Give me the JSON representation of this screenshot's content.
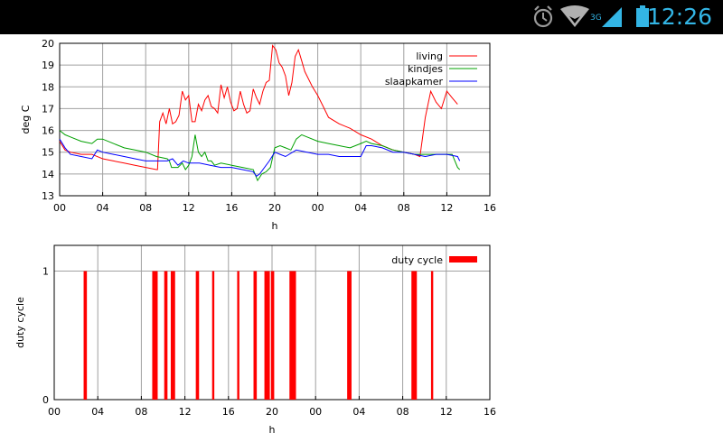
{
  "status_bar": {
    "time": "12:26",
    "network": "3G",
    "icons": [
      "alarm-icon",
      "wifi-icon",
      "signal-icon",
      "battery-icon"
    ],
    "accent": "#33b5e5"
  },
  "chart_data": [
    {
      "type": "line",
      "xlabel": "h",
      "ylabel": "deg C",
      "ylim": [
        13,
        20
      ],
      "xticks": [
        "00",
        "04",
        "08",
        "12",
        "16",
        "20",
        "00",
        "04",
        "08",
        "12",
        "16"
      ],
      "yticks": [
        "13",
        "14",
        "15",
        "16",
        "17",
        "18",
        "19",
        "20"
      ],
      "xlim_hours": [
        0,
        40
      ],
      "grid": true,
      "legend": "top-right",
      "series": [
        {
          "name": "living",
          "color": "#ff0000",
          "points": [
            [
              0,
              15.5
            ],
            [
              0.5,
              15.1
            ],
            [
              1,
              15.0
            ],
            [
              2,
              14.9
            ],
            [
              3,
              14.9
            ],
            [
              4,
              14.7
            ],
            [
              5,
              14.6
            ],
            [
              6,
              14.5
            ],
            [
              7,
              14.4
            ],
            [
              8,
              14.3
            ],
            [
              9,
              14.2
            ],
            [
              9.1,
              14.2
            ],
            [
              9.3,
              16.4
            ],
            [
              9.6,
              16.8
            ],
            [
              9.9,
              16.3
            ],
            [
              10.2,
              17.0
            ],
            [
              10.5,
              16.3
            ],
            [
              10.8,
              16.4
            ],
            [
              11.1,
              16.7
            ],
            [
              11.4,
              17.8
            ],
            [
              11.7,
              17.4
            ],
            [
              12,
              17.6
            ],
            [
              12.3,
              16.4
            ],
            [
              12.6,
              16.4
            ],
            [
              12.9,
              17.2
            ],
            [
              13.2,
              16.9
            ],
            [
              13.5,
              17.4
            ],
            [
              13.8,
              17.6
            ],
            [
              14.1,
              17.1
            ],
            [
              14.4,
              17.0
            ],
            [
              14.7,
              16.8
            ],
            [
              15.0,
              18.1
            ],
            [
              15.3,
              17.5
            ],
            [
              15.6,
              18.0
            ],
            [
              15.9,
              17.3
            ],
            [
              16.2,
              16.9
            ],
            [
              16.5,
              17.0
            ],
            [
              16.8,
              17.8
            ],
            [
              17.1,
              17.2
            ],
            [
              17.4,
              16.8
            ],
            [
              17.7,
              16.9
            ],
            [
              18.0,
              17.9
            ],
            [
              18.3,
              17.5
            ],
            [
              18.6,
              17.2
            ],
            [
              18.9,
              17.8
            ],
            [
              19.2,
              18.2
            ],
            [
              19.5,
              18.3
            ],
            [
              19.8,
              19.9
            ],
            [
              20.1,
              19.7
            ],
            [
              20.4,
              19.1
            ],
            [
              20.7,
              18.9
            ],
            [
              21.0,
              18.5
            ],
            [
              21.3,
              17.6
            ],
            [
              21.6,
              18.2
            ],
            [
              21.9,
              19.4
            ],
            [
              22.2,
              19.7
            ],
            [
              22.5,
              19.2
            ],
            [
              22.8,
              18.7
            ],
            [
              23.1,
              18.4
            ],
            [
              23.5,
              18.0
            ],
            [
              24,
              17.6
            ],
            [
              24.5,
              17.1
            ],
            [
              25,
              16.6
            ],
            [
              26,
              16.3
            ],
            [
              27,
              16.1
            ],
            [
              28,
              15.8
            ],
            [
              29,
              15.6
            ],
            [
              30,
              15.3
            ],
            [
              31,
              15.1
            ],
            [
              32,
              15.0
            ],
            [
              33,
              14.9
            ],
            [
              33.5,
              14.8
            ],
            [
              34.0,
              16.6
            ],
            [
              34.5,
              17.8
            ],
            [
              35.0,
              17.3
            ],
            [
              35.5,
              17.0
            ],
            [
              36.0,
              17.8
            ],
            [
              36.5,
              17.5
            ],
            [
              37,
              17.2
            ]
          ]
        },
        {
          "name": "kindjes",
          "color": "#00a000",
          "points": [
            [
              0,
              16.0
            ],
            [
              0.5,
              15.8
            ],
            [
              1,
              15.7
            ],
            [
              2,
              15.5
            ],
            [
              3,
              15.4
            ],
            [
              3.5,
              15.6
            ],
            [
              4,
              15.6
            ],
            [
              5,
              15.4
            ],
            [
              6,
              15.2
            ],
            [
              7,
              15.1
            ],
            [
              8,
              15.0
            ],
            [
              9,
              14.8
            ],
            [
              10,
              14.7
            ],
            [
              10.2,
              14.6
            ],
            [
              10.4,
              14.3
            ],
            [
              11,
              14.3
            ],
            [
              11.4,
              14.5
            ],
            [
              11.7,
              14.2
            ],
            [
              12,
              14.4
            ],
            [
              12.3,
              14.8
            ],
            [
              12.6,
              15.8
            ],
            [
              12.9,
              15.0
            ],
            [
              13.2,
              14.8
            ],
            [
              13.5,
              15.0
            ],
            [
              13.8,
              14.6
            ],
            [
              14.1,
              14.6
            ],
            [
              14.4,
              14.4
            ],
            [
              15,
              14.5
            ],
            [
              16,
              14.4
            ],
            [
              17,
              14.3
            ],
            [
              18,
              14.2
            ],
            [
              18.4,
              13.7
            ],
            [
              18.8,
              14.0
            ],
            [
              19.2,
              14.1
            ],
            [
              19.6,
              14.3
            ],
            [
              20,
              15.2
            ],
            [
              20.5,
              15.3
            ],
            [
              21,
              15.2
            ],
            [
              21.5,
              15.1
            ],
            [
              22,
              15.6
            ],
            [
              22.5,
              15.8
            ],
            [
              23,
              15.7
            ],
            [
              24,
              15.5
            ],
            [
              25,
              15.4
            ],
            [
              26,
              15.3
            ],
            [
              27,
              15.2
            ],
            [
              28,
              15.4
            ],
            [
              28.5,
              15.5
            ],
            [
              29,
              15.4
            ],
            [
              30,
              15.3
            ],
            [
              31,
              15.1
            ],
            [
              32,
              15.0
            ],
            [
              33,
              14.9
            ],
            [
              34,
              14.9
            ],
            [
              35,
              14.9
            ],
            [
              36,
              14.9
            ],
            [
              36.5,
              14.9
            ],
            [
              37,
              14.3
            ],
            [
              37.2,
              14.2
            ]
          ]
        },
        {
          "name": "slaapkamer",
          "color": "#0000ff",
          "points": [
            [
              0,
              15.6
            ],
            [
              0.5,
              15.2
            ],
            [
              1,
              14.9
            ],
            [
              2,
              14.8
            ],
            [
              3,
              14.7
            ],
            [
              3.5,
              15.1
            ],
            [
              4,
              15.0
            ],
            [
              5,
              14.9
            ],
            [
              6,
              14.8
            ],
            [
              7,
              14.7
            ],
            [
              8,
              14.6
            ],
            [
              9,
              14.6
            ],
            [
              10,
              14.6
            ],
            [
              10.5,
              14.7
            ],
            [
              11,
              14.4
            ],
            [
              11.5,
              14.6
            ],
            [
              12,
              14.5
            ],
            [
              13,
              14.5
            ],
            [
              14,
              14.4
            ],
            [
              15,
              14.3
            ],
            [
              16,
              14.3
            ],
            [
              17,
              14.2
            ],
            [
              18,
              14.1
            ],
            [
              18.3,
              13.9
            ],
            [
              18.6,
              14.0
            ],
            [
              19.5,
              14.6
            ],
            [
              20,
              15.0
            ],
            [
              20.5,
              14.9
            ],
            [
              21,
              14.8
            ],
            [
              22,
              15.1
            ],
            [
              23,
              15.0
            ],
            [
              24,
              14.9
            ],
            [
              25,
              14.9
            ],
            [
              26,
              14.8
            ],
            [
              27,
              14.8
            ],
            [
              28,
              14.8
            ],
            [
              28.5,
              15.3
            ],
            [
              29,
              15.3
            ],
            [
              30,
              15.2
            ],
            [
              31,
              15.0
            ],
            [
              32,
              15.0
            ],
            [
              33,
              14.9
            ],
            [
              34,
              14.8
            ],
            [
              35,
              14.9
            ],
            [
              36,
              14.9
            ],
            [
              37,
              14.8
            ],
            [
              37.2,
              14.6
            ]
          ]
        }
      ]
    },
    {
      "type": "bar",
      "xlabel": "h",
      "ylabel": "duty cycle",
      "ylim": [
        0,
        1.2
      ],
      "xticks": [
        "00",
        "04",
        "08",
        "12",
        "16",
        "20",
        "00",
        "04",
        "08",
        "12",
        "16"
      ],
      "yticks": [
        "0",
        "1"
      ],
      "xlim_hours": [
        0,
        40
      ],
      "grid": true,
      "legend": "top-right",
      "series": [
        {
          "name": "duty cycle",
          "color": "#ff0000",
          "intervals_hours": [
            [
              2.7,
              3.0
            ],
            [
              9.0,
              9.5
            ],
            [
              10.1,
              10.4
            ],
            [
              10.7,
              11.1
            ],
            [
              13.0,
              13.3
            ],
            [
              14.5,
              14.7
            ],
            [
              16.8,
              17.0
            ],
            [
              18.3,
              18.6
            ],
            [
              19.3,
              19.8
            ],
            [
              19.9,
              20.2
            ],
            [
              21.6,
              22.2
            ],
            [
              26.9,
              27.3
            ],
            [
              32.8,
              33.3
            ],
            [
              34.6,
              34.8
            ]
          ]
        }
      ]
    }
  ]
}
